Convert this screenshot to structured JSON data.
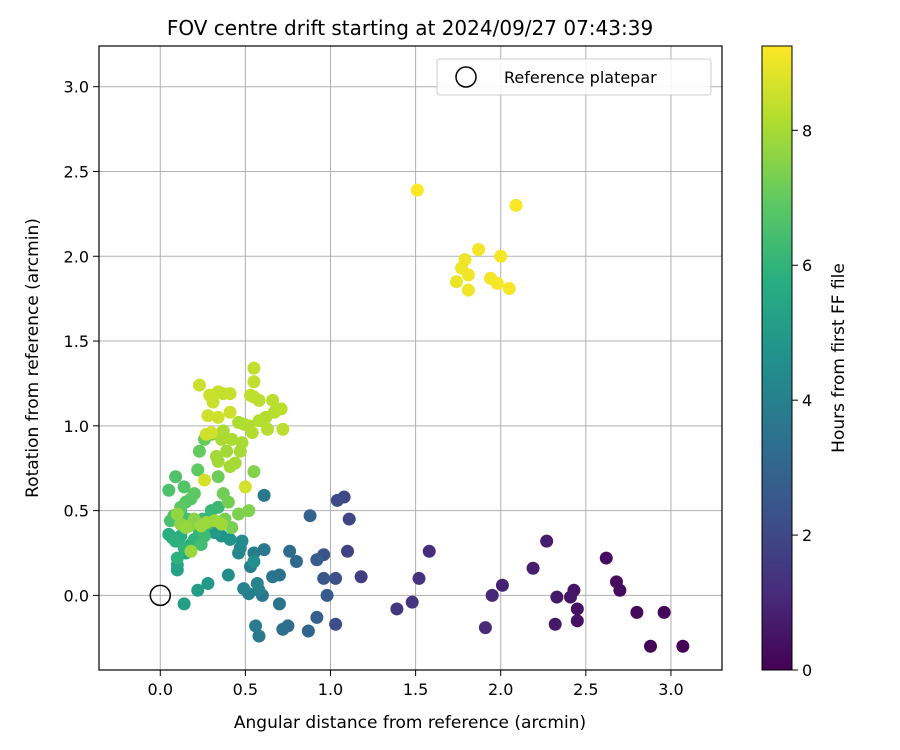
{
  "chart_data": {
    "type": "scatter",
    "title": "FOV centre drift starting at 2024/09/27 07:43:39",
    "xlabel": "Angular distance from reference (arcmin)",
    "ylabel": "Rotation from reference (arcmin)",
    "xlim": [
      -0.36,
      3.3
    ],
    "ylim": [
      -0.44,
      3.24
    ],
    "xticks": [
      0.0,
      0.5,
      1.0,
      1.5,
      2.0,
      2.5,
      3.0
    ],
    "yticks": [
      0.0,
      0.5,
      1.0,
      1.5,
      2.0,
      2.5,
      3.0
    ],
    "xtick_labels": [
      "0.0",
      "0.5",
      "1.0",
      "1.5",
      "2.0",
      "2.5",
      "3.0"
    ],
    "ytick_labels": [
      "0.0",
      "0.5",
      "1.0",
      "1.5",
      "2.0",
      "2.5",
      "3.0"
    ],
    "grid": true,
    "legend": {
      "placement": "top-right",
      "label": "Reference platepar"
    },
    "reference_point": {
      "x": 0.0,
      "y": 0.0
    },
    "colorbar": {
      "label": "Hours from first FF file",
      "range": [
        0,
        9.25
      ],
      "ticks": [
        0,
        2,
        4,
        6,
        8
      ],
      "tick_labels": [
        "0",
        "2",
        "4",
        "6",
        "8"
      ],
      "colormap": "viridis"
    },
    "points": [
      [
        3.07,
        -0.3,
        0.05
      ],
      [
        2.88,
        -0.3,
        0.1
      ],
      [
        2.96,
        -0.1,
        0.15
      ],
      [
        2.8,
        -0.1,
        0.2
      ],
      [
        2.7,
        0.03,
        0.25
      ],
      [
        2.68,
        0.08,
        0.3
      ],
      [
        2.62,
        0.22,
        0.35
      ],
      [
        2.45,
        -0.08,
        0.4
      ],
      [
        2.45,
        -0.15,
        0.45
      ],
      [
        2.43,
        0.03,
        0.5
      ],
      [
        2.41,
        -0.01,
        0.55
      ],
      [
        2.33,
        -0.01,
        0.6
      ],
      [
        2.32,
        -0.17,
        0.65
      ],
      [
        2.27,
        0.32,
        0.7
      ],
      [
        2.19,
        0.16,
        0.8
      ],
      [
        2.01,
        0.06,
        0.9
      ],
      [
        1.95,
        0.0,
        1.0
      ],
      [
        1.91,
        -0.19,
        1.1
      ],
      [
        1.58,
        0.26,
        1.2
      ],
      [
        1.52,
        0.1,
        1.3
      ],
      [
        1.48,
        -0.04,
        1.4
      ],
      [
        1.39,
        -0.08,
        1.5
      ],
      [
        1.18,
        0.11,
        1.7
      ],
      [
        1.1,
        0.26,
        1.8
      ],
      [
        1.11,
        0.45,
        1.9
      ],
      [
        1.08,
        0.58,
        2.0
      ],
      [
        1.04,
        0.56,
        2.1
      ],
      [
        1.03,
        -0.17,
        2.2
      ],
      [
        1.03,
        0.1,
        2.3
      ],
      [
        0.96,
        0.24,
        2.4
      ],
      [
        0.96,
        0.1,
        2.5
      ],
      [
        0.98,
        0.0,
        2.6
      ],
      [
        0.92,
        0.21,
        2.7
      ],
      [
        0.92,
        -0.13,
        2.8
      ],
      [
        0.88,
        0.47,
        2.9
      ],
      [
        0.87,
        -0.21,
        3.0
      ],
      [
        0.8,
        0.2,
        3.1
      ],
      [
        0.76,
        0.26,
        3.2
      ],
      [
        0.75,
        -0.18,
        3.3
      ],
      [
        0.72,
        -0.2,
        3.4
      ],
      [
        0.7,
        0.12,
        3.45
      ],
      [
        0.7,
        -0.05,
        3.5
      ],
      [
        0.66,
        0.11,
        3.55
      ],
      [
        0.6,
        0.0,
        3.6
      ],
      [
        0.61,
        0.27,
        3.65
      ],
      [
        0.61,
        0.59,
        3.7
      ],
      [
        0.58,
        -0.24,
        3.75
      ],
      [
        0.56,
        -0.18,
        3.8
      ],
      [
        0.55,
        0.25,
        3.85
      ],
      [
        0.53,
        0.17,
        3.9
      ],
      [
        0.52,
        0.01,
        3.95
      ],
      [
        0.58,
        0.03,
        4.0
      ],
      [
        0.57,
        0.07,
        4.05
      ],
      [
        0.49,
        0.04,
        4.1
      ],
      [
        0.46,
        0.25,
        4.2
      ],
      [
        0.47,
        0.28,
        4.3
      ],
      [
        0.48,
        0.32,
        4.4
      ],
      [
        0.4,
        0.12,
        4.5
      ],
      [
        0.55,
        0.2,
        4.6
      ],
      [
        0.41,
        0.33,
        4.7
      ],
      [
        0.36,
        0.35,
        4.8
      ],
      [
        0.32,
        0.37,
        4.9
      ],
      [
        0.28,
        0.07,
        5.0
      ],
      [
        0.22,
        0.03,
        5.1
      ],
      [
        0.14,
        -0.05,
        5.2
      ],
      [
        0.1,
        0.15,
        5.3
      ],
      [
        0.1,
        0.18,
        5.4
      ],
      [
        0.15,
        0.25,
        5.5
      ],
      [
        0.18,
        0.3,
        5.6
      ],
      [
        0.12,
        0.35,
        5.7
      ],
      [
        0.05,
        0.36,
        5.75
      ],
      [
        0.07,
        0.34,
        5.8
      ],
      [
        0.09,
        0.32,
        5.85
      ],
      [
        0.1,
        0.22,
        5.9
      ],
      [
        0.14,
        0.28,
        5.95
      ],
      [
        0.2,
        0.33,
        6.0
      ],
      [
        0.23,
        0.38,
        6.05
      ],
      [
        0.25,
        0.45,
        6.1
      ],
      [
        0.3,
        0.5,
        6.15
      ],
      [
        0.34,
        0.52,
        6.2
      ],
      [
        0.28,
        0.42,
        6.25
      ],
      [
        0.26,
        0.35,
        6.3
      ],
      [
        0.24,
        0.3,
        6.35
      ],
      [
        0.16,
        0.45,
        6.4
      ],
      [
        0.12,
        0.5,
        6.45
      ],
      [
        0.08,
        0.47,
        6.5
      ],
      [
        0.06,
        0.44,
        6.55
      ],
      [
        0.05,
        0.62,
        6.6
      ],
      [
        0.09,
        0.7,
        6.65
      ],
      [
        0.14,
        0.64,
        6.7
      ],
      [
        0.18,
        0.57,
        6.75
      ],
      [
        0.15,
        0.55,
        6.8
      ],
      [
        0.12,
        0.52,
        6.85
      ],
      [
        0.2,
        0.6,
        6.9
      ],
      [
        0.22,
        0.74,
        6.95
      ],
      [
        0.23,
        0.85,
        7.0
      ],
      [
        0.26,
        0.92,
        7.05
      ],
      [
        0.3,
        0.95,
        7.1
      ],
      [
        0.34,
        0.7,
        7.15
      ],
      [
        0.37,
        0.6,
        7.2
      ],
      [
        0.4,
        0.55,
        7.25
      ],
      [
        0.38,
        0.45,
        7.3
      ],
      [
        0.42,
        0.4,
        7.35
      ],
      [
        0.46,
        0.48,
        7.4
      ],
      [
        0.52,
        0.5,
        7.45
      ],
      [
        0.55,
        0.73,
        7.5
      ],
      [
        0.2,
        0.45,
        7.55
      ],
      [
        0.17,
        0.41,
        7.6
      ],
      [
        0.12,
        0.42,
        7.65
      ],
      [
        0.1,
        0.48,
        7.7
      ],
      [
        0.15,
        0.4,
        7.75
      ],
      [
        0.18,
        0.26,
        7.8
      ],
      [
        0.24,
        0.41,
        7.82
      ],
      [
        0.27,
        0.43,
        7.84
      ],
      [
        0.32,
        0.44,
        7.86
      ],
      [
        0.36,
        0.42,
        7.88
      ],
      [
        0.34,
        0.79,
        7.9
      ],
      [
        0.33,
        0.82,
        7.92
      ],
      [
        0.39,
        0.85,
        7.94
      ],
      [
        0.41,
        0.76,
        7.96
      ],
      [
        0.44,
        0.78,
        7.98
      ],
      [
        0.47,
        0.85,
        8.0
      ],
      [
        0.48,
        0.9,
        8.02
      ],
      [
        0.36,
        0.92,
        8.04
      ],
      [
        0.37,
        0.97,
        8.06
      ],
      [
        0.42,
        0.92,
        8.08
      ],
      [
        0.46,
        1.02,
        8.1
      ],
      [
        0.49,
        1.01,
        8.12
      ],
      [
        0.52,
        1.0,
        8.14
      ],
      [
        0.54,
        0.96,
        8.16
      ],
      [
        0.58,
        1.03,
        8.18
      ],
      [
        0.62,
        1.05,
        8.2
      ],
      [
        0.63,
        0.98,
        8.22
      ],
      [
        0.67,
        1.08,
        8.24
      ],
      [
        0.71,
        1.1,
        8.26
      ],
      [
        0.72,
        0.98,
        8.28
      ],
      [
        0.66,
        1.15,
        8.3
      ],
      [
        0.58,
        1.15,
        8.32
      ],
      [
        0.55,
        1.17,
        8.34
      ],
      [
        0.53,
        1.18,
        8.36
      ],
      [
        0.55,
        1.26,
        8.38
      ],
      [
        0.55,
        1.34,
        8.4
      ],
      [
        0.41,
        1.19,
        8.42
      ],
      [
        0.37,
        1.19,
        8.44
      ],
      [
        0.34,
        1.2,
        8.46
      ],
      [
        0.31,
        1.14,
        8.48
      ],
      [
        0.29,
        1.18,
        8.5
      ],
      [
        0.23,
        1.24,
        8.52
      ],
      [
        0.41,
        1.08,
        8.54
      ],
      [
        0.28,
        1.06,
        8.56
      ],
      [
        0.34,
        1.05,
        8.58
      ],
      [
        0.3,
        0.96,
        8.6
      ],
      [
        0.27,
        0.95,
        8.62
      ],
      [
        0.26,
        0.68,
        8.64
      ],
      [
        0.5,
        0.64,
        8.66
      ],
      [
        1.74,
        1.85,
        9.0
      ],
      [
        1.77,
        1.93,
        9.02
      ],
      [
        1.79,
        1.98,
        9.04
      ],
      [
        1.81,
        1.89,
        9.06
      ],
      [
        1.81,
        1.8,
        9.08
      ],
      [
        1.87,
        2.04,
        9.1
      ],
      [
        1.94,
        1.87,
        9.12
      ],
      [
        1.98,
        1.84,
        9.14
      ],
      [
        2.0,
        2.0,
        9.16
      ],
      [
        2.05,
        1.81,
        9.18
      ],
      [
        2.09,
        2.3,
        9.2
      ],
      [
        1.51,
        2.39,
        9.22
      ]
    ]
  }
}
